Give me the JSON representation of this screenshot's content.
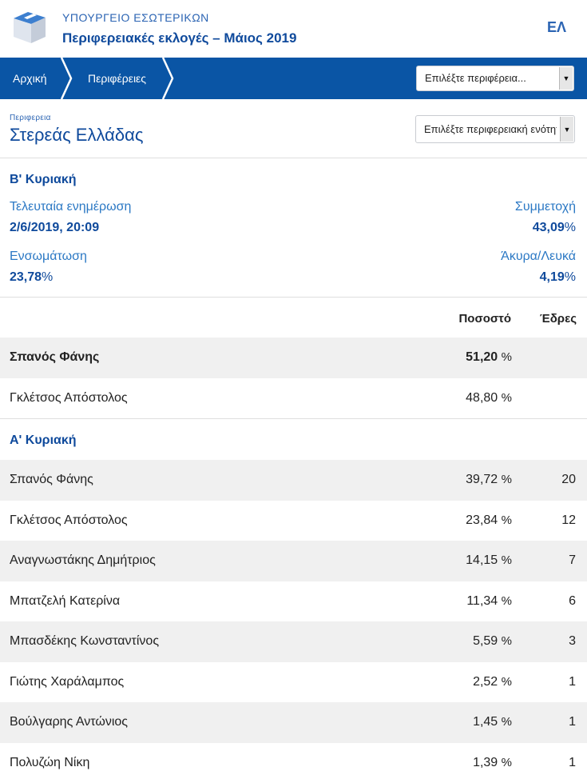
{
  "header": {
    "ministry": "ΥΠΟΥΡΓΕΙΟ ΕΣΩΤΕΡΙΚΩΝ",
    "election": "Περιφερειακές εκλογές – Μάιος 2019",
    "lang": "ΕΛ"
  },
  "nav": {
    "home": "Αρχική",
    "regions": "Περιφέρειες",
    "select_placeholder": "Επιλέξτε περιφέρεια..."
  },
  "region": {
    "label": "Περιφερεια",
    "name": "Στερεάς Ελλάδας",
    "select_placeholder": "Επιλέξτε περιφερειακή ενότητα"
  },
  "round2": {
    "title": "Β' Κυριακή",
    "last_update_label": "Τελευταία ενημέρωση",
    "last_update_value": "2/6/2019, 20:09",
    "turnout_label": "Συμμετοχή",
    "turnout_value": "43,09",
    "integration_label": "Ενσωμάτωση",
    "integration_value": "23,78",
    "invalid_label": "Άκυρα/Λευκά",
    "invalid_value": "4,19",
    "percent_sign": "%"
  },
  "columns": {
    "percent": "Ποσοστό",
    "seats": "Έδρες"
  },
  "round2_results": [
    {
      "name": "Σπανός Φάνης",
      "pct": "51,20",
      "unit": "%",
      "seats": ""
    },
    {
      "name": "Γκλέτσος Απόστολος",
      "pct": "48,80",
      "unit": "%",
      "seats": ""
    }
  ],
  "round1": {
    "title": "Α' Κυριακή"
  },
  "round1_results": [
    {
      "name": "Σπανός Φάνης",
      "pct": "39,72",
      "unit": "%",
      "seats": "20"
    },
    {
      "name": "Γκλέτσος Απόστολος",
      "pct": "23,84",
      "unit": "%",
      "seats": "12"
    },
    {
      "name": "Αναγνωστάκης Δημήτριος",
      "pct": "14,15",
      "unit": "%",
      "seats": "7"
    },
    {
      "name": "Μπατζελή Κατερίνα",
      "pct": "11,34",
      "unit": "%",
      "seats": "6"
    },
    {
      "name": "Μπασδέκης Κωνσταντίνος",
      "pct": "5,59",
      "unit": "%",
      "seats": "3"
    },
    {
      "name": "Γιώτης Χαράλαμπος",
      "pct": "2,52",
      "unit": "%",
      "seats": "1"
    },
    {
      "name": "Βούλγαρης Αντώνιος",
      "pct": "1,45",
      "unit": "%",
      "seats": "1"
    },
    {
      "name": "Πολυζώη Νίκη",
      "pct": "1,39",
      "unit": "%",
      "seats": "1"
    }
  ],
  "colors": {
    "brand_blue": "#0a55a5",
    "heading_blue": "#0f4a9c",
    "link_blue": "#2b78c4",
    "row_shade": "#f0f0f0"
  },
  "icons": {
    "logo": "ballot-box-icon",
    "dropdown": "chevron-down-icon",
    "breadcrumb_separator": "chevron-right-icon"
  }
}
